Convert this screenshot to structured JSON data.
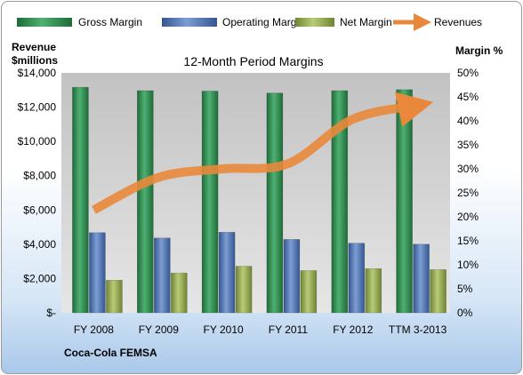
{
  "chart_data": {
    "type": "bar",
    "title": "12-Month Period Margins",
    "company_label": "Coca-Cola FEMSA",
    "left_axis_label_line1": "Revenue",
    "left_axis_label_line2": "$millions",
    "right_axis_label": "Margin %",
    "categories": [
      "FY 2008",
      "FY 2009",
      "FY 2010",
      "FY 2011",
      "FY 2012",
      "TTM 3-2013"
    ],
    "left_ticks": [
      "$-",
      "$2,000",
      "$4,000",
      "$6,000",
      "$8,000",
      "$10,000",
      "$12,000",
      "$14,000"
    ],
    "right_ticks": [
      "0%",
      "5%",
      "10%",
      "15%",
      "20%",
      "25%",
      "30%",
      "35%",
      "40%",
      "45%",
      "50%"
    ],
    "ylim_left": [
      0,
      14000
    ],
    "ylim_right": [
      0,
      50
    ],
    "grid": false,
    "legend_placement": "top",
    "series": [
      {
        "name": "Gross Margin",
        "axis": "right",
        "color": "#2e8b4e",
        "values": [
          47.0,
          46.3,
          46.2,
          45.8,
          46.3,
          46.5
        ]
      },
      {
        "name": "Operating Margin",
        "axis": "right",
        "color": "#4f75b8",
        "values": [
          16.7,
          15.6,
          16.8,
          15.3,
          14.5,
          14.3
        ]
      },
      {
        "name": "Net Margin",
        "axis": "right",
        "color": "#94ad4c",
        "values": [
          6.8,
          8.3,
          9.7,
          8.8,
          9.2,
          9.0
        ]
      },
      {
        "name": "Revenues",
        "axis": "left",
        "type": "line",
        "color": "#e9883b",
        "values": [
          6000,
          7900,
          8400,
          8700,
          11300,
          12100
        ]
      }
    ]
  }
}
